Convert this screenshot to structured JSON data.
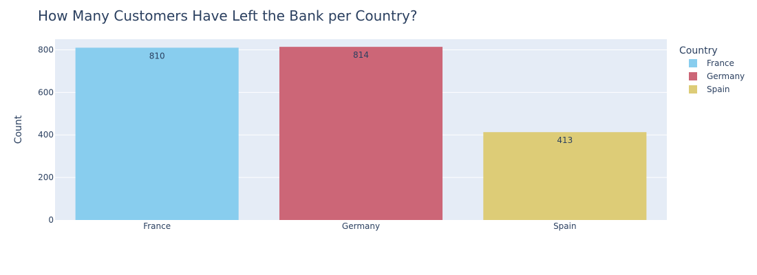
{
  "chart_data": {
    "type": "bar",
    "title": "How Many Customers Have Left the Bank per Country?",
    "xlabel": "",
    "ylabel": "Count",
    "categories": [
      "France",
      "Germany",
      "Spain"
    ],
    "values": [
      810,
      814,
      413
    ],
    "colors": [
      "#88cdee",
      "#cc6677",
      "#ddcc77"
    ],
    "ylim": [
      0,
      850
    ],
    "yticks": [
      0,
      200,
      400,
      600,
      800
    ],
    "grid": true,
    "legend": {
      "title": "Country",
      "position": "top-right",
      "entries": [
        "France",
        "Germany",
        "Spain"
      ]
    }
  }
}
